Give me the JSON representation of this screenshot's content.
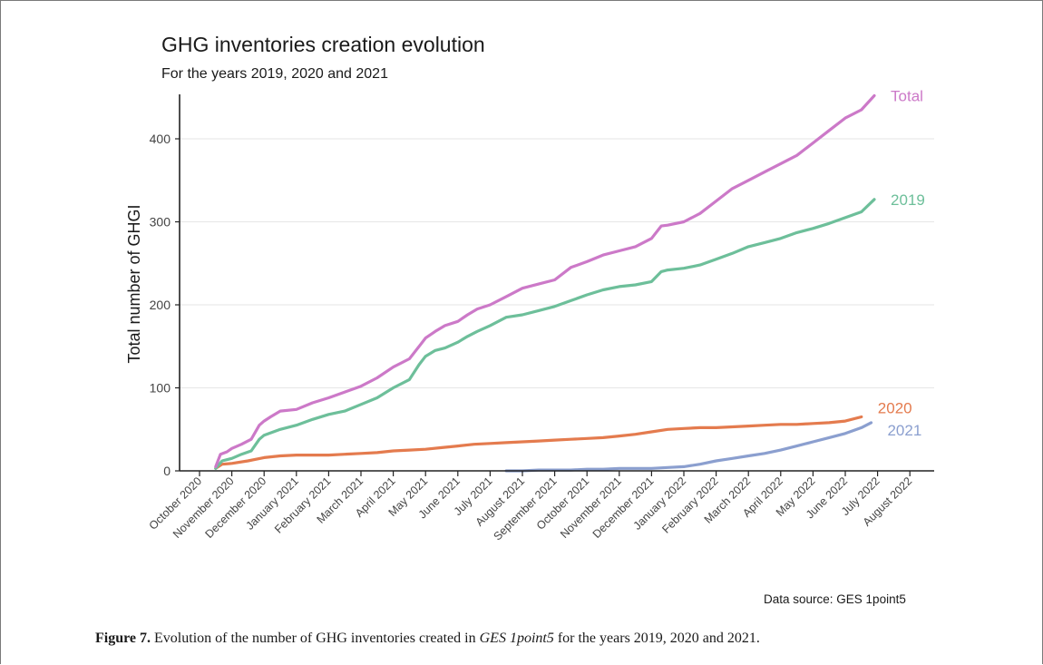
{
  "figure": {
    "title": "GHG inventories creation evolution",
    "subtitle": "For the years 2019, 2020 and 2021",
    "source": "Data source: GES 1point5",
    "caption_label": "Figure 7.",
    "caption_pre": "Evolution of the number of GHG inventories created in",
    "caption_italic": "GES 1point5",
    "caption_post": "for the years 2019, 2020 and 2021."
  },
  "chart_data": {
    "type": "line",
    "title": "GHG inventories creation evolution",
    "subtitle": "For the years 2019, 2020 and 2021",
    "xlabel": "",
    "ylabel": "Total number of GHGI",
    "x_tick_labels": [
      "October 2020",
      "November 2020",
      "December 2020",
      "January 2021",
      "February 2021",
      "March 2021",
      "April 2021",
      "May 2021",
      "June 2021",
      "July 2021",
      "August 2021",
      "September 2021",
      "October 2021",
      "November 2021",
      "December 2021",
      "January 2022",
      "February 2022",
      "March 2022",
      "April 2022",
      "May 2022",
      "June 2022",
      "July 2022",
      "August 2022"
    ],
    "y_ticks": [
      0,
      100,
      200,
      300,
      400
    ],
    "ylim": [
      0,
      460
    ],
    "grid": "horizontal",
    "legend": "direct labels at line ends",
    "x_unit": "months since October 2020",
    "series": [
      {
        "name": "Total",
        "color": "#cc79c8",
        "x": [
          0.5,
          0.65,
          0.85,
          1.0,
          1.3,
          1.6,
          1.85,
          2.0,
          2.2,
          2.5,
          3.0,
          3.5,
          4.0,
          4.5,
          5.0,
          5.5,
          6.0,
          6.5,
          6.8,
          7.0,
          7.3,
          7.6,
          8.0,
          8.3,
          8.6,
          9.0,
          9.5,
          10.0,
          10.5,
          11.0,
          11.5,
          12.0,
          12.5,
          13.0,
          13.5,
          14.0,
          14.3,
          14.5,
          15.0,
          15.5,
          16.0,
          16.5,
          17.0,
          17.5,
          18.0,
          18.5,
          19.0,
          19.5,
          20.0,
          20.5,
          20.9
        ],
        "y": [
          5,
          20,
          23,
          27,
          32,
          38,
          55,
          60,
          65,
          72,
          74,
          82,
          88,
          95,
          102,
          112,
          125,
          135,
          150,
          160,
          168,
          175,
          180,
          188,
          195,
          200,
          210,
          220,
          225,
          230,
          245,
          252,
          260,
          265,
          270,
          280,
          295,
          296,
          300,
          310,
          325,
          340,
          350,
          360,
          370,
          380,
          395,
          410,
          425,
          435,
          452
        ]
      },
      {
        "name": "2019",
        "color": "#6dbf9a",
        "x": [
          0.5,
          0.7,
          1.0,
          1.3,
          1.6,
          1.85,
          2.0,
          2.5,
          3.0,
          3.5,
          4.0,
          4.5,
          5.0,
          5.5,
          6.0,
          6.5,
          6.8,
          7.0,
          7.3,
          7.6,
          8.0,
          8.3,
          8.6,
          9.0,
          9.5,
          10.0,
          10.5,
          11.0,
          11.5,
          12.0,
          12.5,
          13.0,
          13.5,
          14.0,
          14.3,
          14.5,
          15.0,
          15.5,
          16.0,
          16.5,
          17.0,
          17.5,
          18.0,
          18.5,
          19.0,
          19.5,
          20.0,
          20.5,
          20.9
        ],
        "y": [
          3,
          12,
          15,
          20,
          24,
          38,
          43,
          50,
          55,
          62,
          68,
          72,
          80,
          88,
          100,
          110,
          128,
          138,
          145,
          148,
          155,
          162,
          168,
          175,
          185,
          188,
          193,
          198,
          205,
          212,
          218,
          222,
          224,
          228,
          240,
          242,
          244,
          248,
          255,
          262,
          270,
          275,
          280,
          287,
          292,
          298,
          305,
          312,
          327
        ]
      },
      {
        "name": "2020",
        "color": "#e47b4e",
        "x": [
          0.5,
          0.7,
          1.0,
          1.5,
          2.0,
          2.5,
          3.0,
          3.5,
          4.0,
          4.5,
          5.0,
          5.5,
          6.0,
          6.5,
          7.0,
          7.5,
          8.0,
          8.5,
          9.0,
          9.5,
          10.0,
          10.5,
          11.0,
          11.5,
          12.0,
          12.5,
          13.0,
          13.5,
          14.0,
          14.5,
          15.0,
          15.5,
          16.0,
          16.5,
          17.0,
          17.5,
          18.0,
          18.5,
          19.0,
          19.5,
          20.0,
          20.5
        ],
        "y": [
          3,
          8,
          9,
          12,
          16,
          18,
          19,
          19,
          19,
          20,
          21,
          22,
          24,
          25,
          26,
          28,
          30,
          32,
          33,
          34,
          35,
          36,
          37,
          38,
          39,
          40,
          42,
          44,
          47,
          50,
          51,
          52,
          52,
          53,
          54,
          55,
          56,
          56,
          57,
          58,
          60,
          65
        ]
      },
      {
        "name": "2021",
        "color": "#8b9fcf",
        "x": [
          9.5,
          10.0,
          10.5,
          11.0,
          11.5,
          12.0,
          12.5,
          13.0,
          13.5,
          14.0,
          14.5,
          15.0,
          15.5,
          16.0,
          16.5,
          17.0,
          17.5,
          18.0,
          18.5,
          19.0,
          19.5,
          20.0,
          20.5,
          20.8
        ],
        "y": [
          0,
          0,
          1,
          1,
          1,
          2,
          2,
          3,
          3,
          3,
          4,
          5,
          8,
          12,
          15,
          18,
          21,
          25,
          30,
          35,
          40,
          45,
          52,
          58
        ]
      }
    ]
  }
}
